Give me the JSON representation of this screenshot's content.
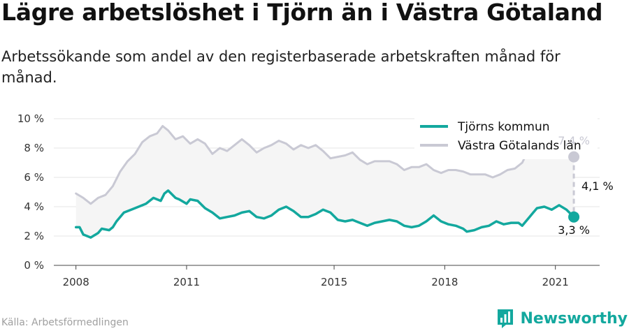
{
  "title": "Lägre arbetslöshet i Tjörn än i Västra Götaland",
  "subtitle": "Arbetssökande som andel av den registerbaserade arbetskraften månad för månad.",
  "source": "Källa: Arbetsförmedlingen",
  "brand": "Newsworthy",
  "colors": {
    "tjorn": "#13a89e",
    "vg": "#c9c9d4",
    "band": "#f5f5f5",
    "brand": "#13a89e"
  },
  "chart_data": {
    "type": "line",
    "x_ticks": [
      "2008",
      "2011",
      "2015",
      "2018",
      "2021"
    ],
    "y_ticks": [
      "0 %",
      "2 %",
      "4 %",
      "6 %",
      "8 %",
      "10 %"
    ],
    "ylim": [
      0,
      10
    ],
    "xlim": [
      2007.4,
      2022.2
    ],
    "legend_position": "top-right",
    "legend": [
      "Tjörns kommun",
      "Västra Götalands län"
    ],
    "annotations": {
      "tjorn_last": "3,3 %",
      "vg_last": "7,4 %",
      "difference": "4,1 %"
    },
    "series": [
      {
        "name": "Västra Götalands län",
        "points": [
          [
            2008.0,
            4.9
          ],
          [
            2008.2,
            4.6
          ],
          [
            2008.4,
            4.2
          ],
          [
            2008.6,
            4.6
          ],
          [
            2008.8,
            4.8
          ],
          [
            2009.0,
            5.4
          ],
          [
            2009.2,
            6.4
          ],
          [
            2009.4,
            7.1
          ],
          [
            2009.6,
            7.6
          ],
          [
            2009.8,
            8.4
          ],
          [
            2010.0,
            8.8
          ],
          [
            2010.2,
            9.0
          ],
          [
            2010.35,
            9.5
          ],
          [
            2010.5,
            9.2
          ],
          [
            2010.7,
            8.6
          ],
          [
            2010.9,
            8.8
          ],
          [
            2011.1,
            8.3
          ],
          [
            2011.3,
            8.6
          ],
          [
            2011.5,
            8.3
          ],
          [
            2011.7,
            7.6
          ],
          [
            2011.9,
            8.0
          ],
          [
            2012.1,
            7.8
          ],
          [
            2012.3,
            8.2
          ],
          [
            2012.5,
            8.6
          ],
          [
            2012.7,
            8.2
          ],
          [
            2012.9,
            7.7
          ],
          [
            2013.1,
            8.0
          ],
          [
            2013.3,
            8.2
          ],
          [
            2013.5,
            8.5
          ],
          [
            2013.7,
            8.3
          ],
          [
            2013.9,
            7.9
          ],
          [
            2014.1,
            8.2
          ],
          [
            2014.3,
            8.0
          ],
          [
            2014.5,
            8.2
          ],
          [
            2014.7,
            7.8
          ],
          [
            2014.9,
            7.3
          ],
          [
            2015.1,
            7.4
          ],
          [
            2015.3,
            7.5
          ],
          [
            2015.5,
            7.7
          ],
          [
            2015.7,
            7.2
          ],
          [
            2015.9,
            6.9
          ],
          [
            2016.1,
            7.1
          ],
          [
            2016.3,
            7.1
          ],
          [
            2016.5,
            7.1
          ],
          [
            2016.7,
            6.9
          ],
          [
            2016.9,
            6.5
          ],
          [
            2017.1,
            6.7
          ],
          [
            2017.3,
            6.7
          ],
          [
            2017.5,
            6.9
          ],
          [
            2017.7,
            6.5
          ],
          [
            2017.9,
            6.3
          ],
          [
            2018.1,
            6.5
          ],
          [
            2018.3,
            6.5
          ],
          [
            2018.5,
            6.4
          ],
          [
            2018.7,
            6.2
          ],
          [
            2018.9,
            6.2
          ],
          [
            2019.1,
            6.2
          ],
          [
            2019.3,
            6.0
          ],
          [
            2019.5,
            6.2
          ],
          [
            2019.7,
            6.5
          ],
          [
            2019.9,
            6.6
          ],
          [
            2020.1,
            7.0
          ],
          [
            2020.3,
            8.0
          ],
          [
            2020.5,
            8.3
          ],
          [
            2020.7,
            8.5
          ],
          [
            2020.9,
            8.1
          ],
          [
            2021.1,
            7.8
          ],
          [
            2021.3,
            7.6
          ],
          [
            2021.5,
            7.4
          ]
        ]
      },
      {
        "name": "Tjörns kommun",
        "points": [
          [
            2008.0,
            2.6
          ],
          [
            2008.1,
            2.6
          ],
          [
            2008.2,
            2.1
          ],
          [
            2008.4,
            1.9
          ],
          [
            2008.6,
            2.2
          ],
          [
            2008.7,
            2.5
          ],
          [
            2008.9,
            2.4
          ],
          [
            2009.0,
            2.6
          ],
          [
            2009.1,
            3.0
          ],
          [
            2009.3,
            3.6
          ],
          [
            2009.5,
            3.8
          ],
          [
            2009.7,
            4.0
          ],
          [
            2009.9,
            4.2
          ],
          [
            2010.1,
            4.6
          ],
          [
            2010.3,
            4.4
          ],
          [
            2010.4,
            4.9
          ],
          [
            2010.5,
            5.1
          ],
          [
            2010.7,
            4.6
          ],
          [
            2010.8,
            4.5
          ],
          [
            2011.0,
            4.2
          ],
          [
            2011.1,
            4.5
          ],
          [
            2011.3,
            4.4
          ],
          [
            2011.5,
            3.9
          ],
          [
            2011.7,
            3.6
          ],
          [
            2011.9,
            3.2
          ],
          [
            2012.1,
            3.3
          ],
          [
            2012.3,
            3.4
          ],
          [
            2012.5,
            3.6
          ],
          [
            2012.7,
            3.7
          ],
          [
            2012.9,
            3.3
          ],
          [
            2013.1,
            3.2
          ],
          [
            2013.3,
            3.4
          ],
          [
            2013.5,
            3.8
          ],
          [
            2013.7,
            4.0
          ],
          [
            2013.9,
            3.7
          ],
          [
            2014.1,
            3.3
          ],
          [
            2014.3,
            3.3
          ],
          [
            2014.5,
            3.5
          ],
          [
            2014.7,
            3.8
          ],
          [
            2014.9,
            3.6
          ],
          [
            2015.1,
            3.1
          ],
          [
            2015.3,
            3.0
          ],
          [
            2015.5,
            3.1
          ],
          [
            2015.7,
            2.9
          ],
          [
            2015.9,
            2.7
          ],
          [
            2016.1,
            2.9
          ],
          [
            2016.3,
            3.0
          ],
          [
            2016.5,
            3.1
          ],
          [
            2016.7,
            3.0
          ],
          [
            2016.9,
            2.7
          ],
          [
            2017.1,
            2.6
          ],
          [
            2017.3,
            2.7
          ],
          [
            2017.5,
            3.0
          ],
          [
            2017.7,
            3.4
          ],
          [
            2017.9,
            3.0
          ],
          [
            2018.1,
            2.8
          ],
          [
            2018.3,
            2.7
          ],
          [
            2018.5,
            2.5
          ],
          [
            2018.6,
            2.3
          ],
          [
            2018.8,
            2.4
          ],
          [
            2019.0,
            2.6
          ],
          [
            2019.2,
            2.7
          ],
          [
            2019.4,
            3.0
          ],
          [
            2019.6,
            2.8
          ],
          [
            2019.8,
            2.9
          ],
          [
            2020.0,
            2.9
          ],
          [
            2020.1,
            2.7
          ],
          [
            2020.3,
            3.3
          ],
          [
            2020.5,
            3.9
          ],
          [
            2020.7,
            4.0
          ],
          [
            2020.9,
            3.8
          ],
          [
            2021.1,
            4.1
          ],
          [
            2021.3,
            3.8
          ],
          [
            2021.5,
            3.3
          ]
        ]
      }
    ]
  }
}
